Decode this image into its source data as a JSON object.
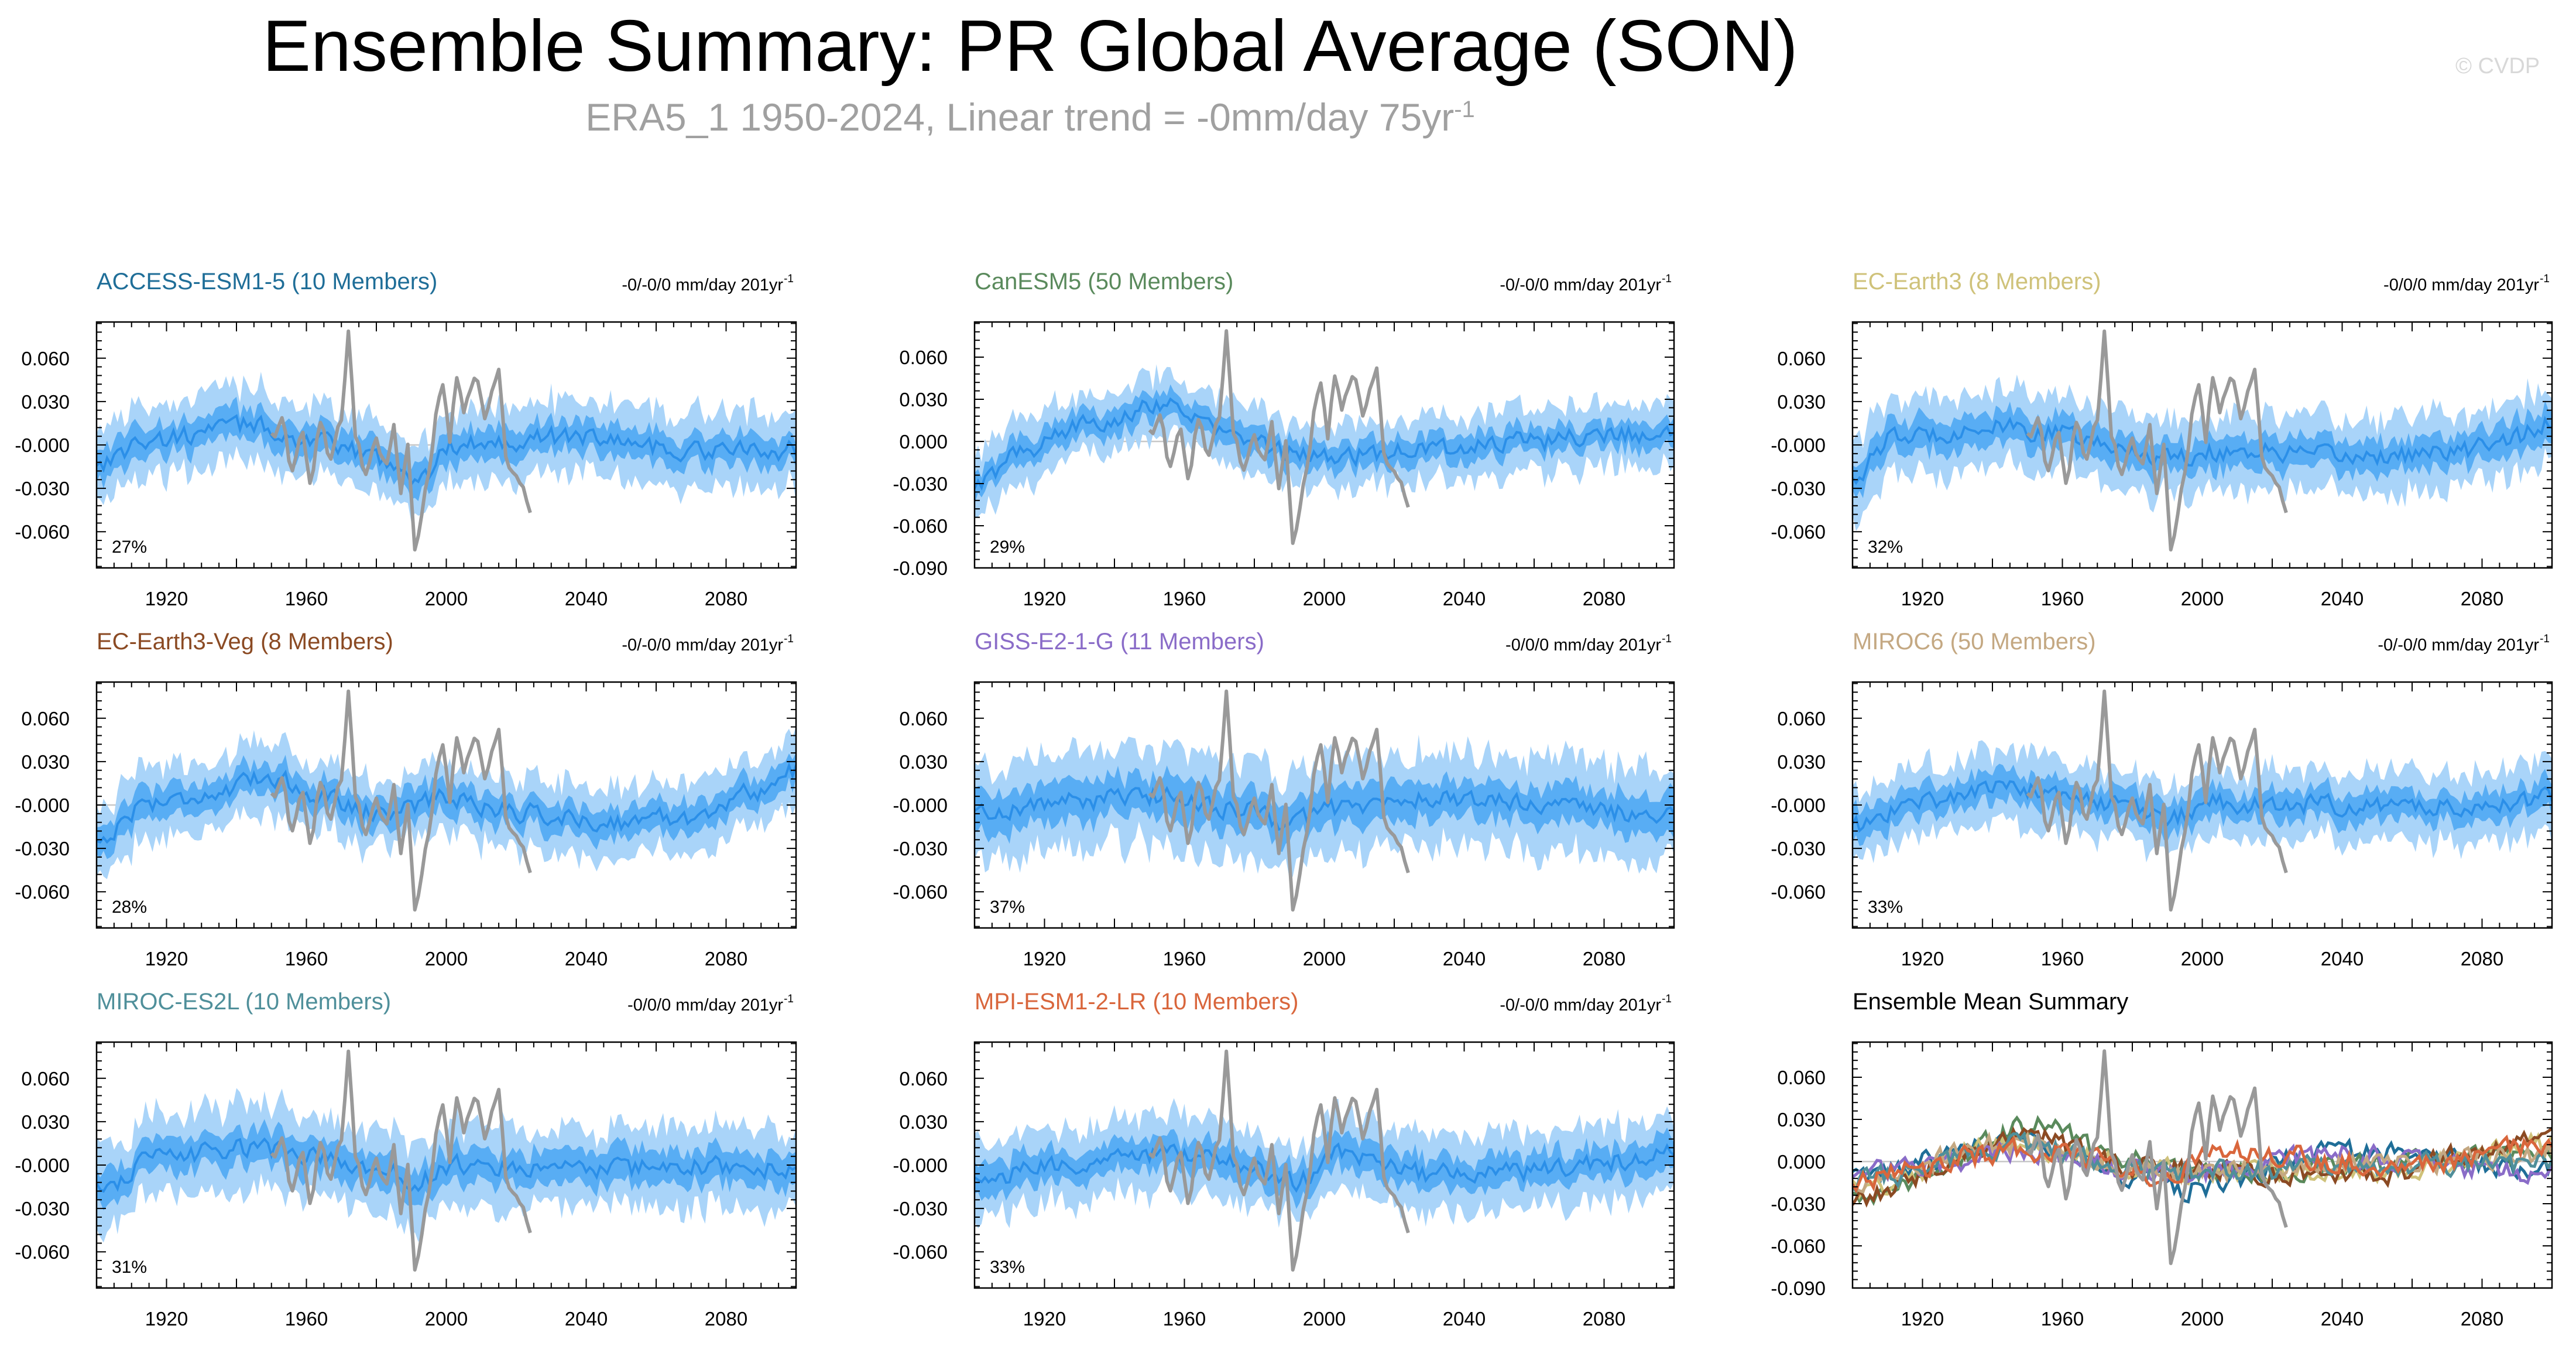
{
  "header": {
    "title": "Ensemble Summary: PR Global Average (SON)",
    "subtitle": "ERA5_1 1950-2024, Linear trend = -0mm/day 75yr",
    "subtitle_sup": "-1",
    "copyright": "© CVDP"
  },
  "colors": {
    "band_outer": "#a9d4f9",
    "band_inner": "#4aa6f3",
    "mean_line": "#2b8fe8",
    "obs_line": "#999999",
    "zero_line": "#c8c8c8"
  },
  "chart_data": [
    {
      "type": "area",
      "model": "ACCESS-ESM1-5 (10 Members)",
      "title_color": "#1f6e98",
      "trend": "-0/-0/0 mm/day 201yr",
      "trend_sup": "-1",
      "percent": "27%",
      "x_ticks": [
        1920,
        1960,
        2000,
        2040,
        2080
      ],
      "y_ticks": [
        0.06,
        0.03,
        0.0,
        -0.03,
        -0.06
      ],
      "y_tick_labels": [
        "0.060",
        "0.030",
        "-0.000",
        "-0.030",
        "-0.060"
      ],
      "xlim": [
        1900,
        2100
      ],
      "ylim": [
        -0.085,
        0.085
      ],
      "mean_knots": [
        [
          1900,
          -0.012
        ],
        [
          1915,
          0.003
        ],
        [
          1945,
          0.014
        ],
        [
          1958,
          0.004
        ],
        [
          1975,
          -0.005
        ],
        [
          1985,
          -0.012
        ],
        [
          1992,
          -0.025
        ],
        [
          2002,
          0.0
        ],
        [
          2015,
          0.003
        ],
        [
          2040,
          0.006
        ],
        [
          2070,
          -0.004
        ],
        [
          2100,
          -0.004
        ]
      ],
      "spread": 0.025
    },
    {
      "type": "area",
      "model": "CanESM5 (50 Members)",
      "title_color": "#5a8a5c",
      "trend": "-0/-0/0 mm/day 201yr",
      "trend_sup": "-1",
      "percent": "29%",
      "x_ticks": [
        1920,
        1960,
        2000,
        2040,
        2080
      ],
      "y_ticks": [
        0.06,
        0.03,
        0.0,
        -0.03,
        -0.06,
        -0.09
      ],
      "y_tick_labels": [
        "0.060",
        "0.030",
        "0.000",
        "-0.030",
        "-0.060",
        "-0.090"
      ],
      "xlim": [
        1900,
        2100
      ],
      "ylim": [
        -0.09,
        0.085
      ],
      "mean_knots": [
        [
          1900,
          -0.032
        ],
        [
          1915,
          -0.005
        ],
        [
          1935,
          0.015
        ],
        [
          1955,
          0.028
        ],
        [
          1962,
          0.018
        ],
        [
          1972,
          0.005
        ],
        [
          1990,
          -0.008
        ],
        [
          2005,
          -0.01
        ],
        [
          2030,
          -0.005
        ],
        [
          2060,
          0.0
        ],
        [
          2085,
          0.006
        ],
        [
          2100,
          0.003
        ]
      ],
      "spread": 0.022
    },
    {
      "type": "area",
      "model": "EC-Earth3 (8 Members)",
      "title_color": "#cfc27a",
      "trend": "-0/0/0 mm/day 201yr",
      "trend_sup": "-1",
      "percent": "32%",
      "x_ticks": [
        1920,
        1960,
        2000,
        2040,
        2080
      ],
      "y_ticks": [
        0.06,
        0.03,
        0.0,
        -0.03,
        -0.06
      ],
      "y_tick_labels": [
        "0.060",
        "0.030",
        "-0.000",
        "-0.030",
        "-0.060"
      ],
      "xlim": [
        1900,
        2100
      ],
      "ylim": [
        -0.085,
        0.085
      ],
      "mean_knots": [
        [
          1900,
          -0.022
        ],
        [
          1912,
          0.005
        ],
        [
          1940,
          0.012
        ],
        [
          1958,
          0.008
        ],
        [
          1975,
          -0.002
        ],
        [
          1990,
          -0.008
        ],
        [
          2010,
          -0.004
        ],
        [
          2040,
          -0.008
        ],
        [
          2070,
          -0.006
        ],
        [
          2090,
          0.006
        ],
        [
          2100,
          0.015
        ]
      ],
      "spread": 0.026
    },
    {
      "type": "area",
      "model": "EC-Earth3-Veg (8 Members)",
      "title_color": "#8b4a23",
      "trend": "-0/-0/0 mm/day 201yr",
      "trend_sup": "-1",
      "percent": "28%",
      "x_ticks": [
        1920,
        1960,
        2000,
        2040,
        2080
      ],
      "y_ticks": [
        0.06,
        0.03,
        0.0,
        -0.03,
        -0.06
      ],
      "y_tick_labels": [
        "0.060",
        "0.030",
        "-0.000",
        "-0.030",
        "-0.060"
      ],
      "xlim": [
        1900,
        2100
      ],
      "ylim": [
        -0.085,
        0.085
      ],
      "mean_knots": [
        [
          1900,
          -0.025
        ],
        [
          1915,
          0.002
        ],
        [
          1935,
          0.008
        ],
        [
          1950,
          0.02
        ],
        [
          1962,
          0.008
        ],
        [
          1980,
          -0.005
        ],
        [
          2000,
          0.005
        ],
        [
          2020,
          -0.005
        ],
        [
          2045,
          -0.012
        ],
        [
          2070,
          -0.008
        ],
        [
          2090,
          0.01
        ],
        [
          2100,
          0.024
        ]
      ],
      "spread": 0.024
    },
    {
      "type": "area",
      "model": "GISS-E2-1-G (11 Members)",
      "title_color": "#8a6cc8",
      "trend": "-0/0/0 mm/day 201yr",
      "trend_sup": "-1",
      "percent": "37%",
      "x_ticks": [
        1920,
        1960,
        2000,
        2040,
        2080
      ],
      "y_ticks": [
        0.06,
        0.03,
        0.0,
        -0.03,
        -0.06
      ],
      "y_tick_labels": [
        "0.060",
        "0.030",
        "-0.000",
        "-0.030",
        "-0.060"
      ],
      "xlim": [
        1900,
        2100
      ],
      "ylim": [
        -0.085,
        0.085
      ],
      "mean_knots": [
        [
          1900,
          -0.005
        ],
        [
          1930,
          0.003
        ],
        [
          1955,
          0.006
        ],
        [
          1975,
          -0.003
        ],
        [
          1990,
          -0.012
        ],
        [
          2002,
          -0.002
        ],
        [
          2030,
          0.004
        ],
        [
          2060,
          0.002
        ],
        [
          2080,
          -0.005
        ],
        [
          2100,
          -0.008
        ]
      ],
      "spread": 0.032
    },
    {
      "type": "area",
      "model": "MIROC6 (50 Members)",
      "title_color": "#c4a882",
      "trend": "-0/-0/0 mm/day 201yr",
      "trend_sup": "-1",
      "percent": "33%",
      "x_ticks": [
        1920,
        1960,
        2000,
        2040,
        2080
      ],
      "y_ticks": [
        0.06,
        0.03,
        0.0,
        -0.03,
        -0.06
      ],
      "y_tick_labels": [
        "0.060",
        "0.030",
        "-0.000",
        "-0.030",
        "-0.060"
      ],
      "xlim": [
        1900,
        2100
      ],
      "ylim": [
        -0.085,
        0.085
      ],
      "mean_knots": [
        [
          1900,
          -0.015
        ],
        [
          1920,
          0.003
        ],
        [
          1945,
          0.013
        ],
        [
          1960,
          0.006
        ],
        [
          1980,
          -0.002
        ],
        [
          1990,
          -0.01
        ],
        [
          2002,
          0.001
        ],
        [
          2040,
          0.0
        ],
        [
          2070,
          -0.002
        ],
        [
          2090,
          0.003
        ],
        [
          2100,
          0.006
        ]
      ],
      "spread": 0.024
    },
    {
      "type": "area",
      "model": "MIROC-ES2L (10 Members)",
      "title_color": "#4f8f9a",
      "trend": "-0/0/0 mm/day 201yr",
      "trend_sup": "-1",
      "percent": "31%",
      "x_ticks": [
        1920,
        1960,
        2000,
        2040,
        2080
      ],
      "y_ticks": [
        0.06,
        0.03,
        0.0,
        -0.03,
        -0.06
      ],
      "y_tick_labels": [
        "0.060",
        "0.030",
        "-0.000",
        "-0.030",
        "-0.060"
      ],
      "xlim": [
        1900,
        2100
      ],
      "ylim": [
        -0.085,
        0.085
      ],
      "mean_knots": [
        [
          1900,
          -0.015
        ],
        [
          1920,
          0.006
        ],
        [
          1945,
          0.012
        ],
        [
          1962,
          0.006
        ],
        [
          1980,
          -0.004
        ],
        [
          1992,
          -0.01
        ],
        [
          2005,
          0.0
        ],
        [
          2040,
          -0.004
        ],
        [
          2070,
          0.0
        ],
        [
          2100,
          -0.004
        ]
      ],
      "spread": 0.028
    },
    {
      "type": "area",
      "model": "MPI-ESM1-2-LR (10 Members)",
      "title_color": "#d9663c",
      "trend": "-0/-0/0 mm/day 201yr",
      "trend_sup": "-1",
      "percent": "33%",
      "x_ticks": [
        1920,
        1960,
        2000,
        2040,
        2080
      ],
      "y_ticks": [
        0.06,
        0.03,
        0.0,
        -0.03,
        -0.06
      ],
      "y_tick_labels": [
        "0.060",
        "0.030",
        "-0.000",
        "-0.030",
        "-0.060"
      ],
      "xlim": [
        1900,
        2100
      ],
      "ylim": [
        -0.085,
        0.085
      ],
      "mean_knots": [
        [
          1900,
          -0.012
        ],
        [
          1920,
          -0.002
        ],
        [
          1950,
          0.008
        ],
        [
          1970,
          0.003
        ],
        [
          1985,
          -0.005
        ],
        [
          1992,
          -0.012
        ],
        [
          2005,
          0.008
        ],
        [
          2030,
          -0.006
        ],
        [
          2060,
          -0.005
        ],
        [
          2085,
          0.002
        ],
        [
          2100,
          0.01
        ]
      ],
      "spread": 0.026
    },
    {
      "type": "line",
      "model": "Ensemble Mean Summary",
      "title_color": "#000000",
      "trend": "",
      "trend_sup": "",
      "percent": "",
      "x_ticks": [
        1920,
        1960,
        2000,
        2040,
        2080
      ],
      "y_ticks": [
        0.06,
        0.03,
        0.0,
        -0.03,
        -0.06,
        -0.09
      ],
      "y_tick_labels": [
        "0.060",
        "0.030",
        "0.000",
        "-0.030",
        "-0.060",
        "-0.090"
      ],
      "xlim": [
        1900,
        2100
      ],
      "ylim": [
        -0.09,
        0.085
      ],
      "series": [
        {
          "color": "#1f6e98",
          "knots": [
            [
              1900,
              -0.012
            ],
            [
              1945,
              0.014
            ],
            [
              1985,
              -0.012
            ],
            [
              1992,
              -0.02
            ],
            [
              2040,
              0.006
            ],
            [
              2100,
              -0.004
            ]
          ]
        },
        {
          "color": "#5a8a5c",
          "knots": [
            [
              1900,
              -0.028
            ],
            [
              1955,
              0.026
            ],
            [
              1975,
              0.003
            ],
            [
              2005,
              -0.008
            ],
            [
              2060,
              0.0
            ],
            [
              2100,
              0.003
            ]
          ]
        },
        {
          "color": "#cfc27a",
          "knots": [
            [
              1900,
              -0.02
            ],
            [
              1945,
              0.012
            ],
            [
              1990,
              -0.006
            ],
            [
              2050,
              -0.008
            ],
            [
              2100,
              0.012
            ]
          ]
        },
        {
          "color": "#8b4a23",
          "knots": [
            [
              1900,
              -0.024
            ],
            [
              1950,
              0.018
            ],
            [
              1980,
              -0.004
            ],
            [
              2045,
              -0.01
            ],
            [
              2090,
              0.01
            ],
            [
              2100,
              0.028
            ]
          ]
        },
        {
          "color": "#8a6cc8",
          "knots": [
            [
              1900,
              -0.005
            ],
            [
              1955,
              0.006
            ],
            [
              1990,
              -0.01
            ],
            [
              2040,
              0.004
            ],
            [
              2100,
              -0.008
            ]
          ]
        },
        {
          "color": "#c4a882",
          "knots": [
            [
              1900,
              -0.014
            ],
            [
              1945,
              0.012
            ],
            [
              1990,
              -0.008
            ],
            [
              2060,
              0.0
            ],
            [
              2100,
              0.005
            ]
          ]
        },
        {
          "color": "#4f8f9a",
          "knots": [
            [
              1900,
              -0.014
            ],
            [
              1945,
              0.011
            ],
            [
              1992,
              -0.008
            ],
            [
              2060,
              -0.002
            ],
            [
              2100,
              -0.003
            ]
          ]
        },
        {
          "color": "#d9663c",
          "knots": [
            [
              1900,
              -0.012
            ],
            [
              1950,
              0.008
            ],
            [
              1992,
              -0.01
            ],
            [
              2005,
              0.008
            ],
            [
              2060,
              -0.004
            ],
            [
              2100,
              0.012
            ]
          ]
        }
      ]
    }
  ],
  "obs_knots": [
    [
      1950,
      0.005
    ],
    [
      1953,
      0.018
    ],
    [
      1956,
      -0.02
    ],
    [
      1959,
      0.01
    ],
    [
      1961,
      -0.028
    ],
    [
      1964,
      0.015
    ],
    [
      1967,
      -0.012
    ],
    [
      1970,
      0.02
    ],
    [
      1972,
      0.08
    ],
    [
      1974,
      0.01
    ],
    [
      1977,
      -0.02
    ],
    [
      1980,
      0.0
    ],
    [
      1983,
      -0.015
    ],
    [
      1985,
      0.01
    ],
    [
      1987,
      -0.03
    ],
    [
      1989,
      0.005
    ],
    [
      1991,
      -0.075
    ],
    [
      1993,
      -0.05
    ],
    [
      1995,
      -0.02
    ],
    [
      1997,
      0.02
    ],
    [
      1999,
      0.04
    ],
    [
      2001,
      0.0
    ],
    [
      2003,
      0.048
    ],
    [
      2005,
      0.02
    ],
    [
      2007,
      0.04
    ],
    [
      2009,
      0.045
    ],
    [
      2011,
      0.015
    ],
    [
      2013,
      0.038
    ],
    [
      2015,
      0.052
    ],
    [
      2017,
      -0.01
    ],
    [
      2019,
      -0.02
    ],
    [
      2021,
      -0.03
    ],
    [
      2024,
      -0.045
    ]
  ]
}
